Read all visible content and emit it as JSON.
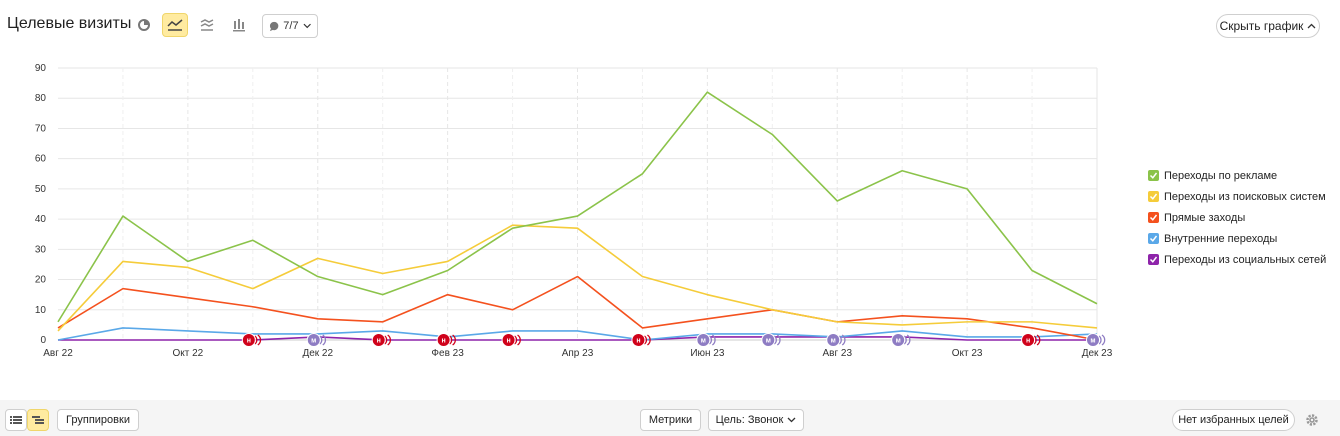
{
  "header": {
    "title": "Целевые визиты",
    "counter_label": "7/7",
    "hide_chart_label": "Скрыть график"
  },
  "footer": {
    "groupings_label": "Группировки",
    "metrics_label": "Метрики",
    "goal_label": "Цель: Звонок",
    "no_favorites_label": "Нет избранных целей"
  },
  "colors": {
    "accent_active": "#ffeba0",
    "grid": "#e6e6e6",
    "marker_red": "#d0021b",
    "marker_purple": "#8e7cc3"
  },
  "icons": [
    "pie-chart-icon",
    "line-chart-icon",
    "area-chart-icon",
    "bar-chart-icon",
    "comment-icon",
    "list-icon",
    "tree-icon",
    "gear-icon"
  ],
  "chart_data": {
    "type": "line",
    "x_labels": [
      "Авг 22",
      "Окт 22",
      "Дек 22",
      "Фев 23",
      "Апр 23",
      "Июн 23",
      "Авг 23",
      "Окт 23",
      "Дек 23"
    ],
    "ylim": [
      0,
      90
    ],
    "yticks": [
      0,
      10,
      20,
      30,
      40,
      50,
      60,
      70,
      80,
      90
    ],
    "grid": true,
    "legend_position": "right",
    "series": [
      {
        "name": "Переходы по рекламе",
        "color": "#8bc34a",
        "values": [
          6,
          41,
          26,
          33,
          21,
          15,
          23,
          37,
          41,
          55,
          82,
          68,
          46,
          56,
          50,
          23,
          12
        ]
      },
      {
        "name": "Переходы из поисковых систем",
        "color": "#f5cc3a",
        "values": [
          3,
          26,
          24,
          17,
          27,
          22,
          26,
          38,
          37,
          21,
          15,
          10,
          6,
          5,
          6,
          6,
          4
        ]
      },
      {
        "name": "Прямые заходы",
        "color": "#f4511e",
        "values": [
          4,
          17,
          14,
          11,
          7,
          6,
          15,
          10,
          21,
          4,
          7,
          10,
          6,
          8,
          7,
          4,
          0
        ]
      },
      {
        "name": "Внутренние переходы",
        "color": "#5aa8e8",
        "values": [
          0,
          4,
          3,
          2,
          2,
          3,
          1,
          3,
          3,
          0,
          2,
          2,
          1,
          3,
          1,
          1,
          2
        ]
      },
      {
        "name": "Переходы из социальных сетей",
        "color": "#8e24aa",
        "values": [
          0,
          0,
          0,
          0,
          1,
          0,
          0,
          0,
          0,
          0,
          1,
          1,
          1,
          1,
          0,
          0,
          0
        ]
      }
    ],
    "annotations": [
      {
        "label": "н",
        "kind": "red",
        "position": 3
      },
      {
        "label": "м",
        "kind": "purple",
        "position": 4
      },
      {
        "label": "н",
        "kind": "red",
        "position": 5
      },
      {
        "label": "н",
        "kind": "red",
        "position": 6
      },
      {
        "label": "н",
        "kind": "red",
        "position": 7
      },
      {
        "label": "н",
        "kind": "red",
        "position": 9
      },
      {
        "label": "м",
        "kind": "purple",
        "position": 10
      },
      {
        "label": "м",
        "kind": "purple",
        "position": 11
      },
      {
        "label": "м",
        "kind": "purple",
        "position": 12
      },
      {
        "label": "м",
        "kind": "purple",
        "position": 13
      },
      {
        "label": "н",
        "kind": "red",
        "position": 15
      },
      {
        "label": "м",
        "kind": "purple",
        "position": 16
      }
    ]
  }
}
